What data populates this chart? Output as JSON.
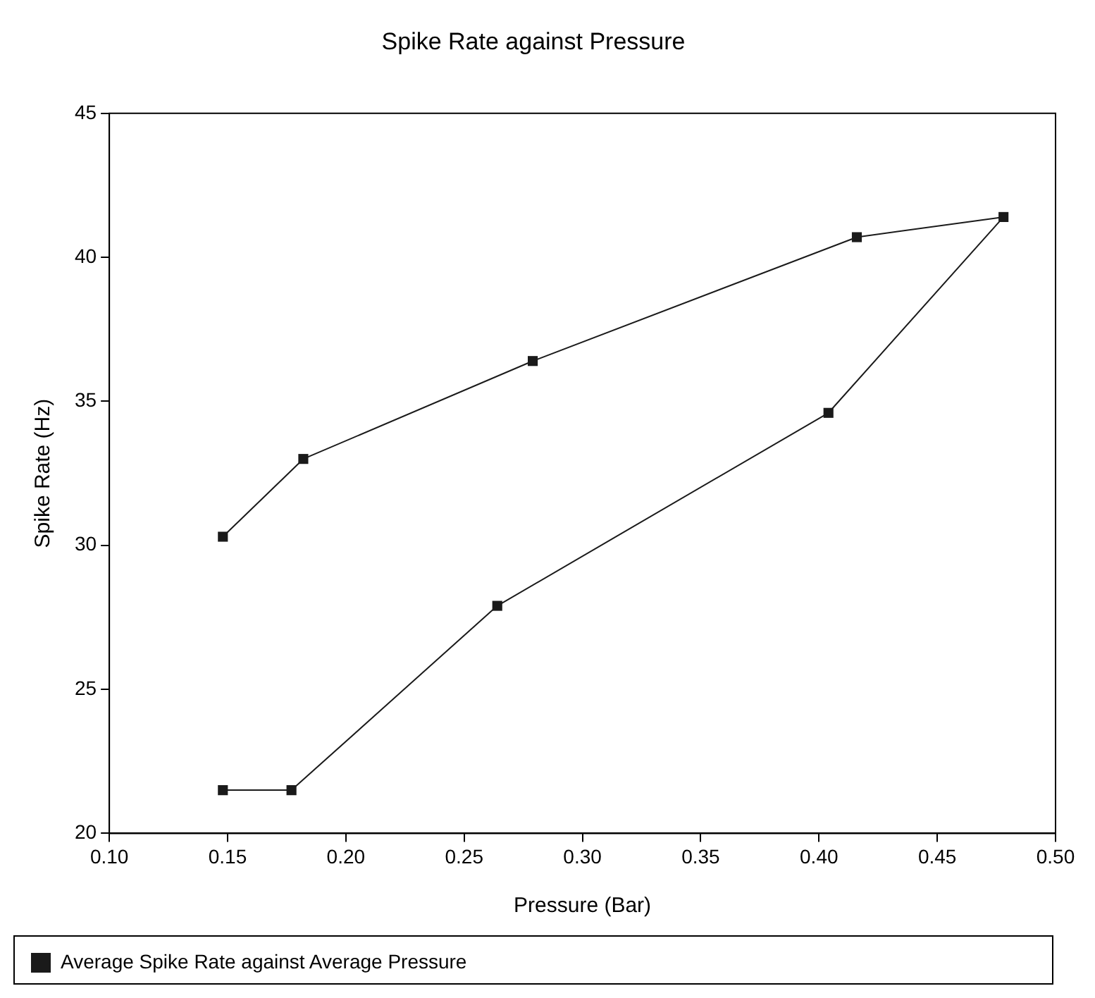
{
  "chart_data": {
    "type": "line",
    "title": "Spike Rate against Pressure",
    "xlabel": "Pressure (Bar)",
    "ylabel": "Spike Rate (Hz)",
    "xlim": [
      0.1,
      0.5
    ],
    "xticks": [
      {
        "value": 0.1,
        "label": "0.10"
      },
      0.15,
      {
        "value": 0.2,
        "label": "0.20"
      },
      0.25,
      {
        "value": 0.3,
        "label": "0.30"
      },
      0.35,
      {
        "value": 0.4,
        "label": "0.40"
      },
      0.45,
      {
        "value": 0.5,
        "label": "0.50"
      }
    ],
    "ylim": [
      20,
      45
    ],
    "yticks": [
      20,
      25,
      30,
      35,
      40,
      45
    ],
    "grid": false,
    "legend": "bottom left",
    "marker": "square",
    "line_style": "solid",
    "series": [
      {
        "name": "Average Spike Rate against Average Pressure",
        "color": "#1a1a1a",
        "x": [
          0.148,
          0.177,
          0.264,
          0.404,
          0.478,
          0.416,
          0.279,
          0.182,
          0.148
        ],
        "values": [
          21.5,
          21.5,
          27.9,
          34.6,
          41.4,
          40.7,
          36.4,
          33.0,
          30.3
        ]
      }
    ]
  }
}
